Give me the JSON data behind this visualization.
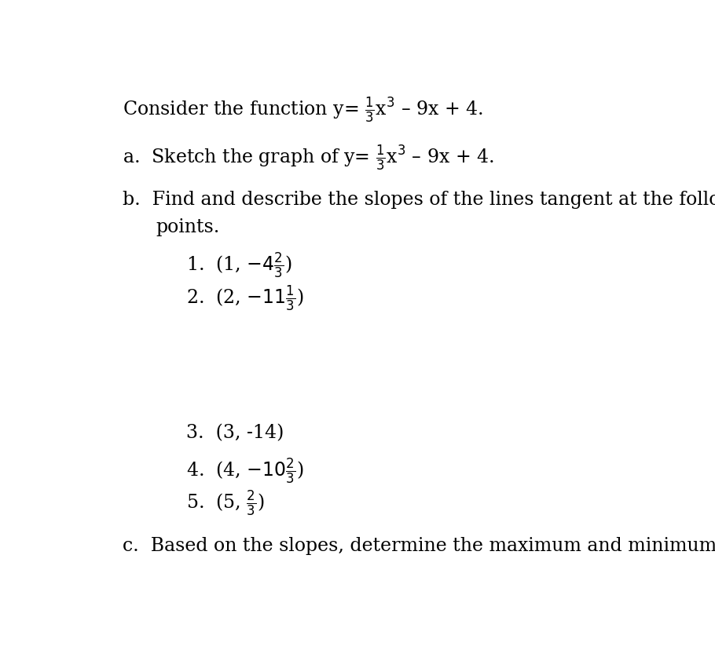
{
  "background_color": "#ffffff",
  "font_family": "serif",
  "main_fontsize": 17,
  "dash": "–",
  "title_prefix": "Consider the function y= ",
  "title_suffix": "x³ – 9x + 4.",
  "part_a_prefix": "a.  Sketch the graph of y= ",
  "part_a_suffix": "x³ – 9x + 4.",
  "part_b_line1": "b.  Find and describe the slopes of the lines tangent at the following",
  "part_b_line2": "points.",
  "point1": "1.  (1, -4",
  "point1_frac": "2/3",
  "point2": "2.  (2, -11",
  "point2_frac": "1/3",
  "point3": "3.  (3, -14)",
  "point4": "4.  (4, -10",
  "point4_frac": "2/3",
  "point5": "5.  (5, ",
  "point5_frac": "2/3",
  "part_c": "c.  Based on the slopes, determine the maximum and minimum point."
}
